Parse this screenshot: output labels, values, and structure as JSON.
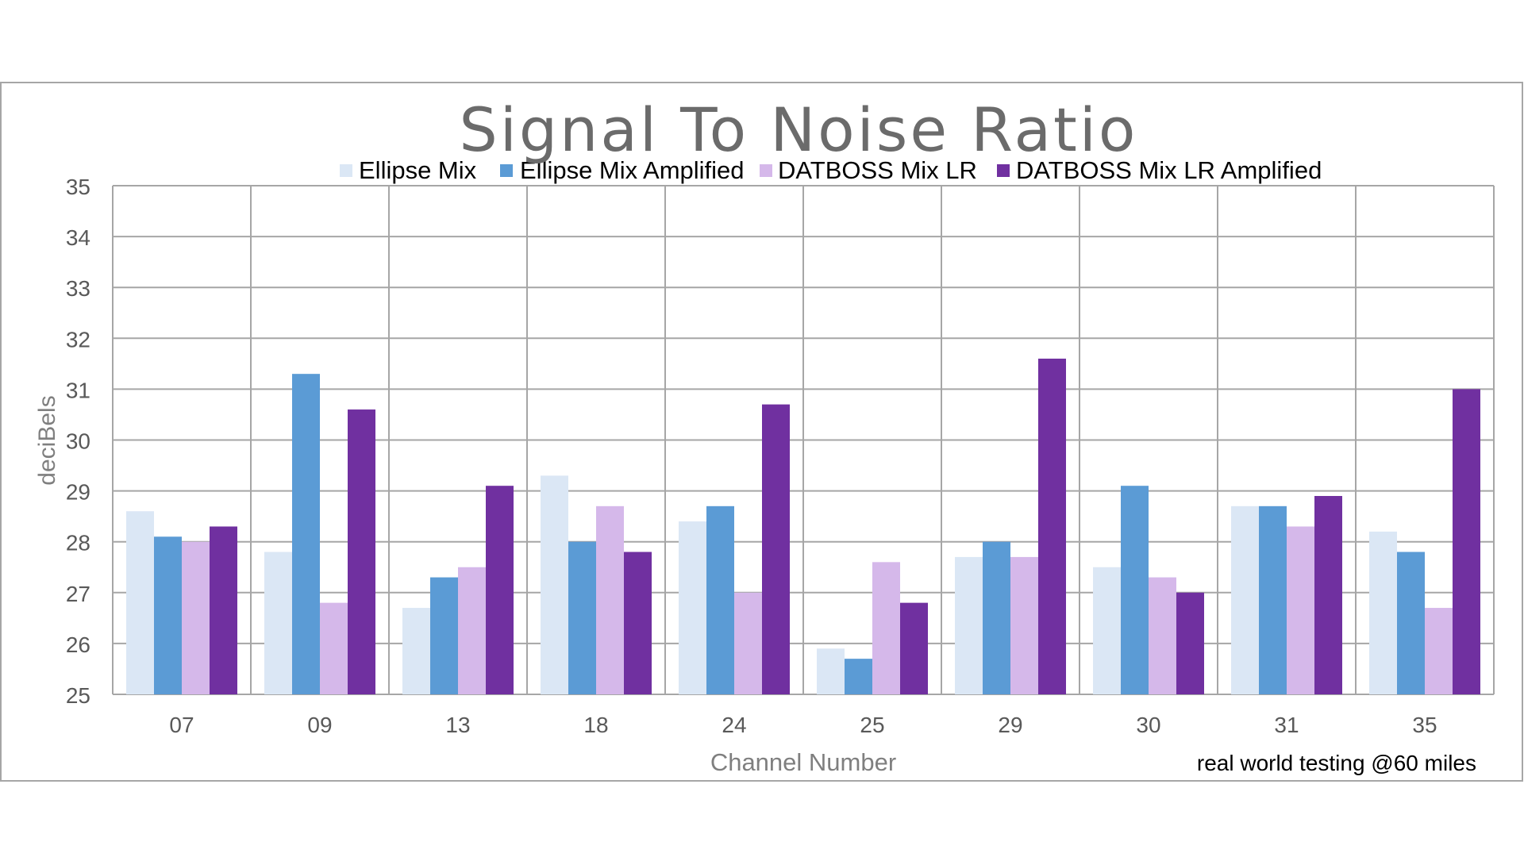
{
  "chart_data": {
    "type": "bar",
    "title": "Signal To Noise Ratio",
    "xlabel": "Channel Number",
    "ylabel": "deciBels",
    "note": "real world testing @60 miles",
    "categories": [
      "07",
      "09",
      "13",
      "18",
      "24",
      "25",
      "29",
      "30",
      "31",
      "35"
    ],
    "ylim": [
      25,
      35
    ],
    "yticks": [
      "25",
      "26",
      "27",
      "28",
      "29",
      "30",
      "31",
      "32",
      "33",
      "34",
      "35"
    ],
    "grid": true,
    "legend_position": "top",
    "series": [
      {
        "name": "Ellipse Mix",
        "color": "#dbe7f5",
        "values": [
          28.6,
          27.8,
          26.7,
          29.3,
          28.4,
          25.9,
          27.7,
          27.5,
          28.7,
          28.2
        ]
      },
      {
        "name": "Ellipse Mix Amplified",
        "color": "#5b9bd5",
        "values": [
          28.1,
          31.3,
          27.3,
          28.0,
          28.7,
          25.7,
          28.0,
          29.1,
          28.7,
          27.8
        ]
      },
      {
        "name": "DATBOSS Mix LR",
        "color": "#d5b8ea",
        "values": [
          28.0,
          26.8,
          27.5,
          28.7,
          27.0,
          27.6,
          27.7,
          27.3,
          28.3,
          26.7
        ]
      },
      {
        "name": "DATBOSS Mix LR Amplified",
        "color": "#7030a0",
        "values": [
          28.3,
          30.6,
          29.1,
          27.8,
          30.7,
          26.8,
          31.6,
          27.0,
          28.9,
          31.0
        ]
      }
    ]
  }
}
